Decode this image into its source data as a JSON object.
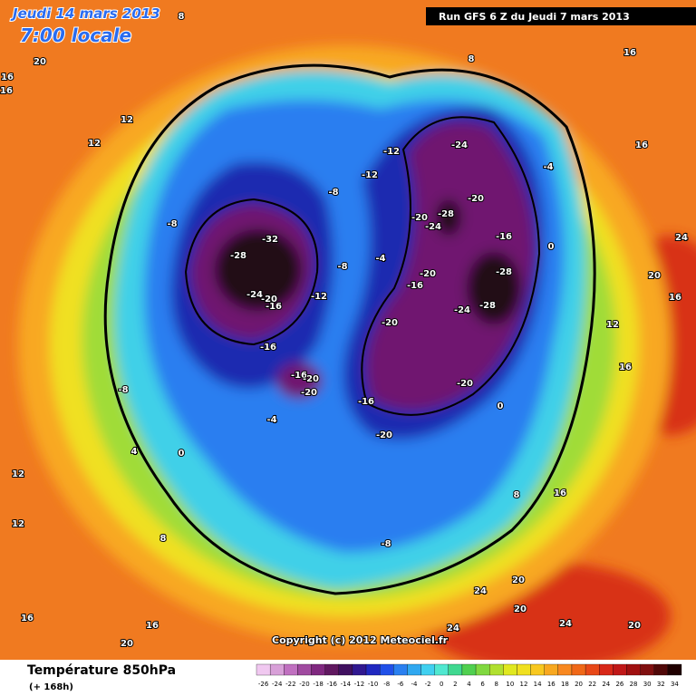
{
  "header": {
    "date": "Jeudi 14 mars 2013",
    "time": "7:00 locale",
    "run": "Run GFS 6 Z du Jeudi 7 mars 2013"
  },
  "copyright": "Copyright (c) 2012 Meteociel.fr",
  "footer": {
    "title": "Température 850hPa",
    "subtitle": "(+ 168h)"
  },
  "scale": {
    "ticks": [
      -26,
      -24,
      -22,
      -20,
      -18,
      -16,
      -14,
      -12,
      -10,
      -8,
      -6,
      -4,
      -2,
      0,
      2,
      4,
      6,
      8,
      10,
      12,
      14,
      16,
      18,
      20,
      22,
      24,
      26,
      28,
      30,
      32,
      34
    ],
    "colors": [
      "#f0c8f0",
      "#d8a0d8",
      "#c070c0",
      "#a04aa0",
      "#802880",
      "#601860",
      "#401060",
      "#301890",
      "#2028c0",
      "#2050e8",
      "#2a80f0",
      "#30a8f0",
      "#40d0f0",
      "#50e8d0",
      "#40d890",
      "#50d050",
      "#80d840",
      "#b0e030",
      "#e0e820",
      "#f0e020",
      "#f8c820",
      "#f8a820",
      "#f88820",
      "#f06818",
      "#e84818",
      "#d82818",
      "#c01818",
      "#a01010",
      "#801010",
      "#500808",
      "#200000"
    ]
  },
  "contour_labels": [
    8,
    20,
    16,
    16,
    8,
    16,
    16,
    12,
    12,
    -12,
    -12,
    -24,
    -4,
    -8,
    -20,
    -8,
    -28,
    -20,
    -24,
    -16,
    0,
    -32,
    -28,
    -4,
    -8,
    -20,
    -28,
    -16,
    -24,
    -20,
    -16,
    -12,
    -24,
    -28,
    -20,
    -16,
    -8,
    -16,
    -20,
    -20,
    -20,
    -16,
    0,
    -4,
    -20,
    4,
    0,
    8,
    -8,
    20,
    24,
    20,
    24,
    24,
    20,
    16,
    20,
    24,
    20,
    16,
    12,
    16,
    12,
    16,
    12,
    8,
    16
  ]
}
